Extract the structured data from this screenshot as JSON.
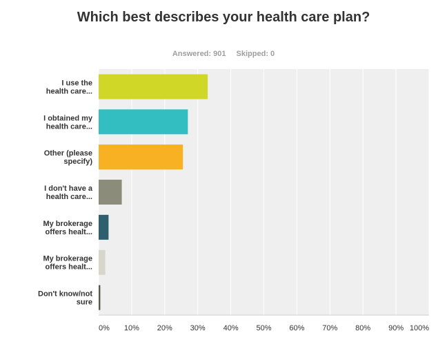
{
  "stats": {
    "answered": "Answered: 901",
    "skipped": "Skipped: 0"
  },
  "chart_data": {
    "type": "bar",
    "orientation": "horizontal",
    "title": "Which best describes your health care plan?",
    "categories": [
      [
        "I use the",
        "health care..."
      ],
      [
        "I obtained my",
        "health care..."
      ],
      [
        "Other (please",
        "specify)"
      ],
      [
        "I don't have a",
        "health care..."
      ],
      [
        "My brokerage",
        "offers healt..."
      ],
      [
        "My brokerage",
        "offers healt..."
      ],
      [
        "Don't know/not",
        "sure"
      ]
    ],
    "values": [
      33,
      27,
      25.5,
      7,
      3,
      2,
      0.5
    ],
    "colors": [
      "#d1d726",
      "#33bfc1",
      "#f7b123",
      "#8c8c7a",
      "#2d5f6e",
      "#d6d6cb",
      "#58584d"
    ],
    "xlim": [
      0,
      100
    ],
    "xticks": [
      "0%",
      "10%",
      "20%",
      "30%",
      "40%",
      "50%",
      "60%",
      "70%",
      "80%",
      "90%",
      "100%"
    ],
    "grid": true,
    "plot_background": "#efefef"
  }
}
